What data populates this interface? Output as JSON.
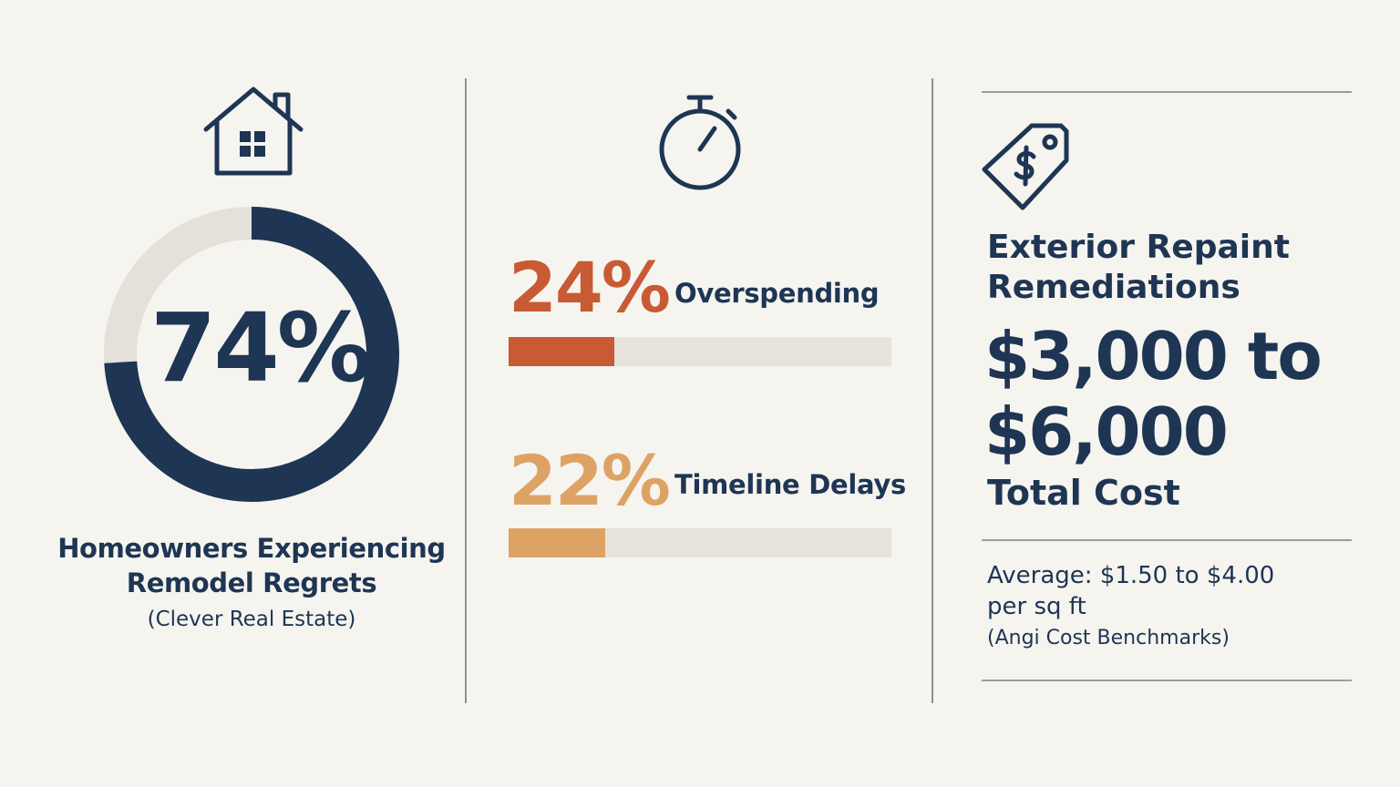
{
  "colors": {
    "navy": "#1e3554",
    "donut_track": "#e4e1da",
    "orange": "#c85a34",
    "tan": "#dda365",
    "bar_track": "#e7e3db"
  },
  "regret": {
    "icon": "house-icon",
    "value_text": "74%",
    "value": 74,
    "label_line1": "Homeowners Experiencing",
    "label_line2": "Remodel Regrets",
    "source": "(Clever Real Estate)"
  },
  "issues": {
    "icon": "stopwatch-icon",
    "items": [
      {
        "percent_text": "24%",
        "percent": 24,
        "label": "Overspending",
        "color": "#c85a34"
      },
      {
        "percent_text": "22%",
        "percent": 22,
        "label": "Timeline Delays",
        "color": "#dda365"
      }
    ]
  },
  "cost": {
    "icon": "price-tag-icon",
    "title_line1": "Exterior Repaint",
    "title_line2": "Remediations",
    "range_line1": "$3,000 to",
    "range_line2": "$6,000",
    "total_label": "Total Cost",
    "average_line1": "Average: $1.50 to $4.00",
    "average_line2": "per sq ft",
    "source": "(Angi Cost Benchmarks)"
  }
}
